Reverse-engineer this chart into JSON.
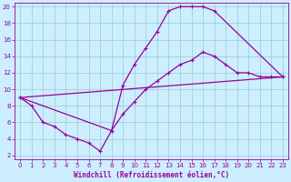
{
  "xlabel": "Windchill (Refroidissement éolien,°C)",
  "bg_color": "#cceeff",
  "grid_color": "#99cccc",
  "line_color": "#990099",
  "xlim": [
    0,
    23
  ],
  "ylim": [
    2,
    20
  ],
  "xticks": [
    0,
    1,
    2,
    3,
    4,
    5,
    6,
    7,
    8,
    9,
    10,
    11,
    12,
    13,
    14,
    15,
    16,
    17,
    18,
    19,
    20,
    21,
    22,
    23
  ],
  "yticks": [
    2,
    4,
    6,
    8,
    10,
    12,
    14,
    16,
    18,
    20
  ],
  "line1_x": [
    0,
    1,
    2,
    3,
    4,
    5,
    6,
    7,
    8,
    9,
    10,
    11,
    12,
    13,
    14,
    15,
    16,
    17,
    23
  ],
  "line1_y": [
    9,
    8,
    6,
    5.5,
    4.5,
    4,
    3.5,
    2.5,
    5,
    10.5,
    13,
    15,
    17,
    19.5,
    20,
    20,
    20,
    19.5,
    11.5
  ],
  "line2_x": [
    0,
    8,
    9,
    10,
    11,
    12,
    13,
    14,
    15,
    16,
    17,
    18,
    19,
    20,
    21,
    22,
    23
  ],
  "line2_y": [
    9,
    5,
    7,
    8.5,
    10,
    11,
    12,
    13,
    13.5,
    14.5,
    14,
    13,
    12,
    12,
    11.5,
    11.5,
    11.5
  ],
  "line3_x": [
    0,
    23
  ],
  "line3_y": [
    9,
    11.5
  ],
  "marker": "+",
  "markersize": 3.5,
  "linewidth": 0.9,
  "tick_fontsize": 5,
  "label_fontsize": 5.5
}
